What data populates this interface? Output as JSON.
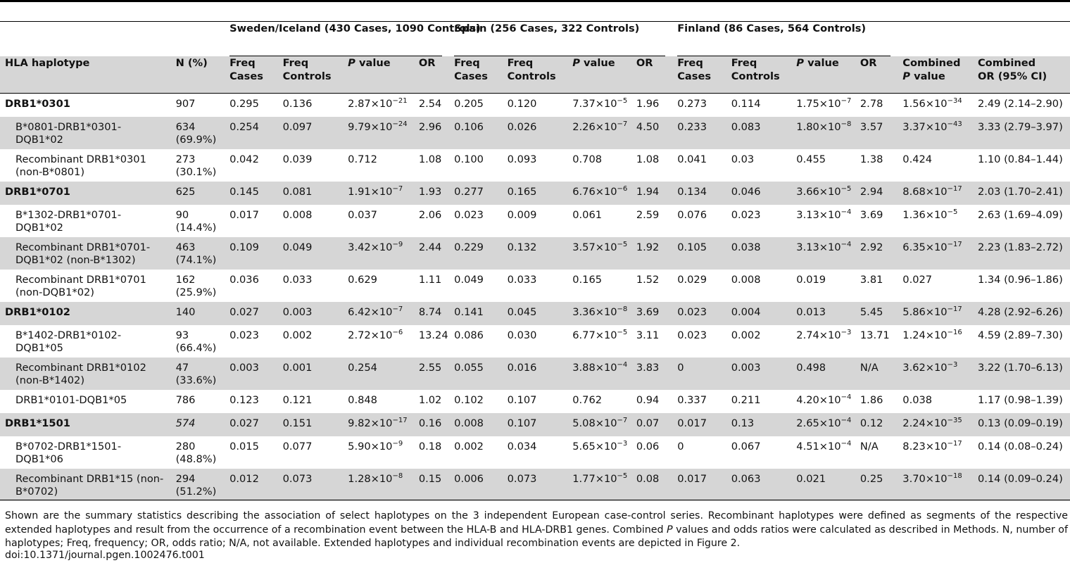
{
  "groups": {
    "sweden": "Sweden/Iceland (430 Cases, 1090 Controls)",
    "spain": "Spain (256 Cases, 322 Controls)",
    "finland": "Finland (86 Cases, 564 Controls)"
  },
  "headers": {
    "hla": "HLA haplotype",
    "n": "N (%)",
    "freq_cases_1": "Freq",
    "freq_cases_2": "Cases",
    "freq_controls_1": "Freq",
    "freq_controls_2": "Controls",
    "p_italic": "P",
    "p_rest": " value",
    "or": "OR",
    "comb_p_1": "Combined",
    "comb_p_italic": "P",
    "comb_p_rest": " value",
    "comb_or_1": "Combined",
    "comb_or_2": "OR (95% CI)"
  },
  "rows": [
    {
      "hap": "DRB1*0301",
      "n": "907",
      "se": [
        "0.295",
        "0.136",
        "2.87×10",
        "−21",
        "2.54"
      ],
      "sp": [
        "0.205",
        "0.120",
        "7.37×10",
        "−5",
        "1.96"
      ],
      "fi": [
        "0.273",
        "0.114",
        "1.75×10",
        "−7",
        "2.78"
      ],
      "cp": [
        "1.56×10",
        "−34"
      ],
      "cor": "2.49 (2.14–2.90)"
    },
    {
      "hap": "B*0801-DRB1*0301-DQB1*02",
      "n": "634 (69.9%)",
      "se": [
        "0.254",
        "0.097",
        "9.79×10",
        "−24",
        "2.96"
      ],
      "sp": [
        "0.106",
        "0.026",
        "2.26×10",
        "−7",
        "4.50"
      ],
      "fi": [
        "0.233",
        "0.083",
        "1.80×10",
        "−8",
        "3.57"
      ],
      "cp": [
        "3.37×10",
        "−43"
      ],
      "cor": "3.33 (2.79–3.97)"
    },
    {
      "hap": "Recombinant DRB1*0301 (non-B*0801)",
      "n": "273 (30.1%)",
      "se": [
        "0.042",
        "0.039",
        "0.712",
        "",
        "1.08"
      ],
      "sp": [
        "0.100",
        "0.093",
        "0.708",
        "",
        "1.08"
      ],
      "fi": [
        "0.041",
        "0.03",
        "0.455",
        "",
        "1.38"
      ],
      "cp": [
        "0.424",
        ""
      ],
      "cor": "1.10 (0.84–1.44)"
    },
    {
      "hap": "DRB1*0701",
      "n": "625",
      "se": [
        "0.145",
        "0.081",
        "1.91×10",
        "−7",
        "1.93"
      ],
      "sp": [
        "0.277",
        "0.165",
        "6.76×10",
        "−6",
        "1.94"
      ],
      "fi": [
        "0.134",
        "0.046",
        "3.66×10",
        "−5",
        "2.94"
      ],
      "cp": [
        "8.68×10",
        "−17"
      ],
      "cor": "2.03 (1.70–2.41)"
    },
    {
      "hap": "B*1302-DRB1*0701-DQB1*02",
      "n": "90 (14.4%)",
      "se": [
        "0.017",
        "0.008",
        "0.037",
        "",
        "2.06"
      ],
      "sp": [
        "0.023",
        "0.009",
        "0.061",
        "",
        "2.59"
      ],
      "fi": [
        "0.076",
        "0.023",
        "3.13×10",
        "−4",
        "3.69"
      ],
      "cp": [
        "1.36×10",
        "−5"
      ],
      "cor": "2.63 (1.69–4.09)"
    },
    {
      "hap": "Recombinant DRB1*0701-DQB1*02 (non-B*1302)",
      "n": "463 (74.1%)",
      "se": [
        "0.109",
        "0.049",
        "3.42×10",
        "−9",
        "2.44"
      ],
      "sp": [
        "0.229",
        "0.132",
        "3.57×10",
        "−5",
        "1.92"
      ],
      "fi": [
        "0.105",
        "0.038",
        "3.13×10",
        "−4",
        "2.92"
      ],
      "cp": [
        "6.35×10",
        "−17"
      ],
      "cor": "2.23 (1.83–2.72)"
    },
    {
      "hap": "Recombinant DRB1*0701 (non-DQB1*02)",
      "n": "162 (25.9%)",
      "se": [
        "0.036",
        "0.033",
        "0.629",
        "",
        "1.11"
      ],
      "sp": [
        "0.049",
        "0.033",
        "0.165",
        "",
        "1.52"
      ],
      "fi": [
        "0.029",
        "0.008",
        "0.019",
        "",
        "3.81"
      ],
      "cp": [
        "0.027",
        ""
      ],
      "cor": "1.34 (0.96–1.86)"
    },
    {
      "hap": "DRB1*0102",
      "n": "140",
      "se": [
        "0.027",
        "0.003",
        "6.42×10",
        "−7",
        "8.74"
      ],
      "sp": [
        "0.141",
        "0.045",
        "3.36×10",
        "−8",
        "3.69"
      ],
      "fi": [
        "0.023",
        "0.004",
        "0.013",
        "",
        "5.45"
      ],
      "cp": [
        "5.86×10",
        "−17"
      ],
      "cor": "4.28 (2.92–6.26)"
    },
    {
      "hap": "B*1402-DRB1*0102-DQB1*05",
      "n": "93 (66.4%)",
      "se": [
        "0.023",
        "0.002",
        "2.72×10",
        "−6",
        "13.24"
      ],
      "sp": [
        "0.086",
        "0.030",
        "6.77×10",
        "−5",
        "3.11"
      ],
      "fi": [
        "0.023",
        "0.002",
        "2.74×10",
        "−3",
        "13.71"
      ],
      "cp": [
        "1.24×10",
        "−16"
      ],
      "cor": "4.59 (2.89–7.30)"
    },
    {
      "hap": "Recombinant DRB1*0102 (non-B*1402)",
      "n": "47 (33.6%)",
      "se": [
        "0.003",
        "0.001",
        "0.254",
        "",
        "2.55"
      ],
      "sp": [
        "0.055",
        "0.016",
        "3.88×10",
        "−4",
        "3.83"
      ],
      "fi": [
        "0",
        "0.003",
        "0.498",
        "",
        "N/A"
      ],
      "cp": [
        "3.62×10",
        "−3"
      ],
      "cor": "3.22 (1.70–6.13)"
    },
    {
      "hap": "DRB1*0101-DQB1*05",
      "n": "786",
      "se": [
        "0.123",
        "0.121",
        "0.848",
        "",
        "1.02"
      ],
      "sp": [
        "0.102",
        "0.107",
        "0.762",
        "",
        "0.94"
      ],
      "fi": [
        "0.337",
        "0.211",
        "4.20×10",
        "−4",
        "1.86"
      ],
      "cp": [
        "0.038",
        ""
      ],
      "cor": "1.17 (0.98–1.39)"
    },
    {
      "hap": "DRB1*1501",
      "n": "574",
      "se": [
        "0.027",
        "0.151",
        "9.82×10",
        "−17",
        "0.16"
      ],
      "sp": [
        "0.008",
        "0.107",
        "5.08×10",
        "−7",
        "0.07"
      ],
      "fi": [
        "0.017",
        "0.13",
        "2.65×10",
        "−4",
        "0.12"
      ],
      "cp": [
        "2.24×10",
        "−35"
      ],
      "cor": "0.13 (0.09–0.19)"
    },
    {
      "hap": "B*0702-DRB1*1501-DQB1*06",
      "n": "280 (48.8%)",
      "se": [
        "0.015",
        "0.077",
        "5.90×10",
        "−9",
        "0.18"
      ],
      "sp": [
        "0.002",
        "0.034",
        "5.65×10",
        "−3",
        "0.06"
      ],
      "fi": [
        "0",
        "0.067",
        "4.51×10",
        "−4",
        "N/A"
      ],
      "cp": [
        "8.23×10",
        "−17"
      ],
      "cor": "0.14 (0.08–0.24)"
    },
    {
      "hap": "Recombinant DRB1*15 (non-B*0702)",
      "n": "294 (51.2%)",
      "se": [
        "0.012",
        "0.073",
        "1.28×10",
        "−8",
        "0.15"
      ],
      "sp": [
        "0.006",
        "0.073",
        "1.77×10",
        "−5",
        "0.08"
      ],
      "fi": [
        "0.017",
        "0.063",
        "0.021",
        "",
        "0.25"
      ],
      "cp": [
        "3.70×10",
        "−18"
      ],
      "cor": "0.14 (0.09–0.24)"
    }
  ],
  "caption": {
    "part1": "Shown are the summary statistics describing the association of select haplotypes on the 3 independent European case-control series. Recombinant haplotypes were defined as segments of the respective extended haplotypes and result from the occurrence of a recombination event between the HLA-B and HLA-DRB1 genes. Combined ",
    "p_italic": "P",
    "part2": " values and odds ratios were calculated as described in Methods. N, number of haplotypes; Freq, frequency; OR, odds ratio; N/A, not available. Extended haplotypes and individual recombination events are depicted in Figure 2."
  },
  "doi": "doi:10.1371/journal.pgen.1002476.t001"
}
